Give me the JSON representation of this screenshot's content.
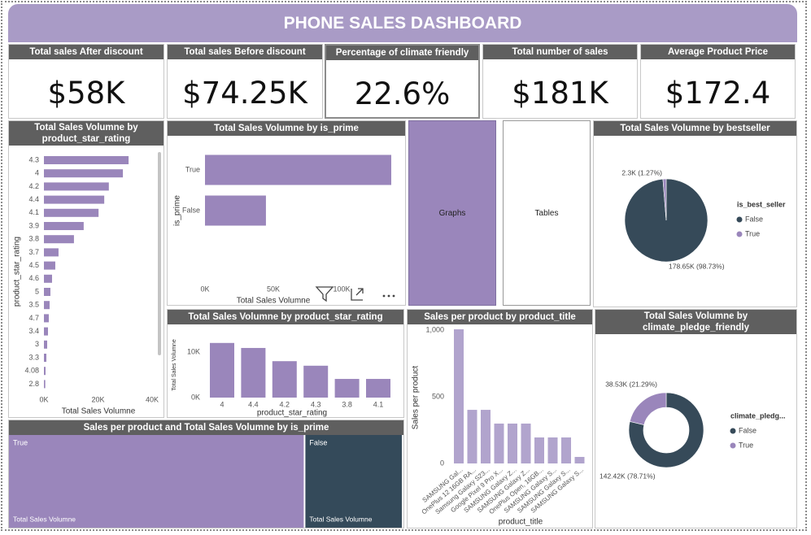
{
  "header": {
    "title": "PHONE SALES DASHBOARD"
  },
  "cards": [
    {
      "label": "Total sales After discount",
      "value": "$58K"
    },
    {
      "label": "Total sales Before discount",
      "value": "$74.25K"
    },
    {
      "label": "Percentage of climate friendly",
      "value": "22.6%"
    },
    {
      "label": "Total number of sales",
      "value": "$181K"
    },
    {
      "label": "Average Product Price",
      "value": "$172.4"
    }
  ],
  "buttons": [
    "Graphs",
    "Tables"
  ],
  "panels": [
    {
      "type": "hbar",
      "title": "Total Sales Volumne by product_star_rating",
      "color": "#9a86bb",
      "categories": [
        "4.3",
        "4",
        "4.2",
        "4.4",
        "4.1",
        "3.9",
        "3.8",
        "3.7",
        "4.5",
        "4.6",
        "5",
        "3.5",
        "4.7",
        "3.4",
        "3",
        "3.3",
        "4.08",
        "2.8"
      ],
      "values": [
        31300,
        29200,
        24000,
        22300,
        20200,
        14700,
        11100,
        5400,
        4200,
        3000,
        2400,
        2100,
        1800,
        1500,
        1200,
        900,
        600,
        500
      ],
      "xlim": [
        0,
        40000
      ],
      "xticks": [
        {
          "value": 0,
          "label": "0K"
        },
        {
          "value": 20000,
          "label": "20K"
        },
        {
          "value": 40000,
          "label": "40K"
        }
      ],
      "xlabel": "Total Sales Volumne",
      "ylabel": "product_star_rating"
    },
    {
      "type": "hbar",
      "title": "Total Sales Volumne by is_prime",
      "color": "#9a86bb",
      "categories": [
        "True",
        "False"
      ],
      "values": [
        136300,
        44600
      ],
      "xlim": [
        0,
        140000
      ],
      "xticks": [
        {
          "value": 0,
          "label": "0K"
        },
        {
          "value": 50000,
          "label": "50K"
        },
        {
          "value": 100000,
          "label": "100K"
        }
      ],
      "xlabel": "Total Sales Volumne",
      "ylabel": "is_prime"
    },
    {
      "type": "pie",
      "title": "Total Sales Volumne by bestseller",
      "legend_title": "is_best_seller",
      "categories": [
        "False",
        "True"
      ],
      "colors": [
        "#364a59",
        "#9a86bb"
      ],
      "values": [
        178650,
        2300
      ],
      "value_labels": [
        "178.65K (98.73%)",
        "2.3K (1.27%)"
      ]
    },
    {
      "type": "vbar",
      "title": "Total Sales Volumne by product_star_rating",
      "color": "#9a86bb",
      "categories": [
        "4",
        "4.4",
        "4.2",
        "4.3",
        "3.8",
        "4.1"
      ],
      "values": [
        12000,
        10900,
        8000,
        7000,
        4100,
        4100
      ],
      "ylim": [
        0,
        15000
      ],
      "yticks": [
        {
          "value": 0,
          "label": "0K"
        },
        {
          "value": 10000,
          "label": "10K"
        }
      ],
      "xlabel": "product_star_rating",
      "ylabel": "Total Sales Volumne"
    },
    {
      "type": "vbar",
      "title": "Sales per product by product_title",
      "color": "#b1a4cd",
      "categories": [
        "SAMSUNG Gal...",
        "OnePlus 12 16GB RA...",
        "Samsung Galaxy S23...",
        "Google Pixel 9 Pro X...",
        "SAMSUNG Galaxy Z...",
        "SAMSUNG Galaxy Z...",
        "OnePlus Open, 16GB...",
        "SAMSUNG Galaxy S...",
        "SAMSUNG Galaxy S...",
        "SAMSUNG Galaxy S..."
      ],
      "values": [
        1006,
        402,
        402,
        299,
        299,
        299,
        195,
        195,
        195,
        49
      ],
      "ylim": [
        0,
        1000
      ],
      "yticks": [
        0,
        500,
        {
          "value": 1000,
          "label": "1,000"
        }
      ],
      "xlabel": "product_title",
      "ylabel": "Sales per product"
    },
    {
      "type": "donut",
      "title": "Total Sales Volumne by climate_pledge_friendly",
      "legend_title": "climate_pledg...",
      "categories": [
        "False",
        "True"
      ],
      "colors": [
        "#364a59",
        "#9a86bb"
      ],
      "values": [
        142420,
        38530
      ],
      "value_labels": [
        "142.42K (78.71%)",
        "38.53K (21.29%)"
      ]
    },
    {
      "type": "treemap",
      "title": "Sales per product and Total Sales Volumne by is_prime",
      "measure": "Total Sales Volumne",
      "categories": [
        "True",
        "False"
      ],
      "colors": [
        "#9a86bb",
        "#344a5a"
      ],
      "values": [
        136300,
        44600
      ]
    }
  ]
}
